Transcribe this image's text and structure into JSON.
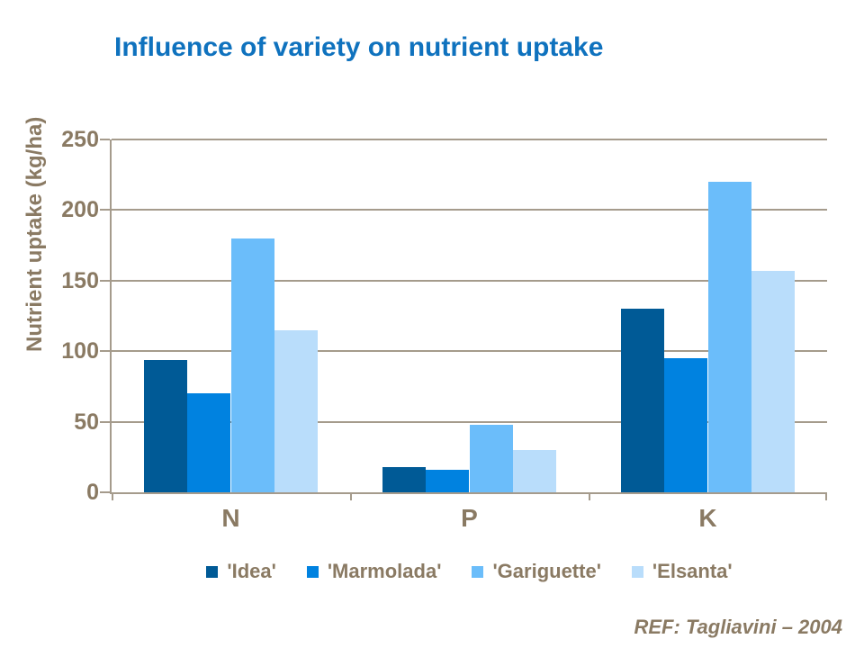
{
  "title": "Influence of variety on nutrient uptake",
  "ref": "REF: Tagliavini – 2004",
  "colors": {
    "title": "#0F72BE",
    "axis_text": "#8A7A63",
    "grid_line": "#A59B8C",
    "background": "#FFFFFF"
  },
  "chart_data": {
    "type": "bar",
    "title": "Influence of variety on nutrient uptake",
    "categories": [
      "N",
      "P",
      "K"
    ],
    "series": [
      {
        "name": "'Idea'",
        "color": "#005A96",
        "values": [
          94,
          18,
          130
        ]
      },
      {
        "name": "'Marmolada'",
        "color": "#0082E0",
        "values": [
          70,
          16,
          95
        ]
      },
      {
        "name": "'Gariguette'",
        "color": "#6BBDFA",
        "values": [
          180,
          48,
          220
        ]
      },
      {
        "name": "'Elsanta'",
        "color": "#B9DDFB",
        "values": [
          115,
          30,
          157
        ]
      }
    ],
    "xlabel": "",
    "ylabel": "Nutrient uptake (kg/ha)",
    "ylim": [
      0,
      250
    ],
    "yticks": [
      0,
      50,
      100,
      150,
      200,
      250
    ],
    "grid": true,
    "legend_position": "bottom"
  }
}
